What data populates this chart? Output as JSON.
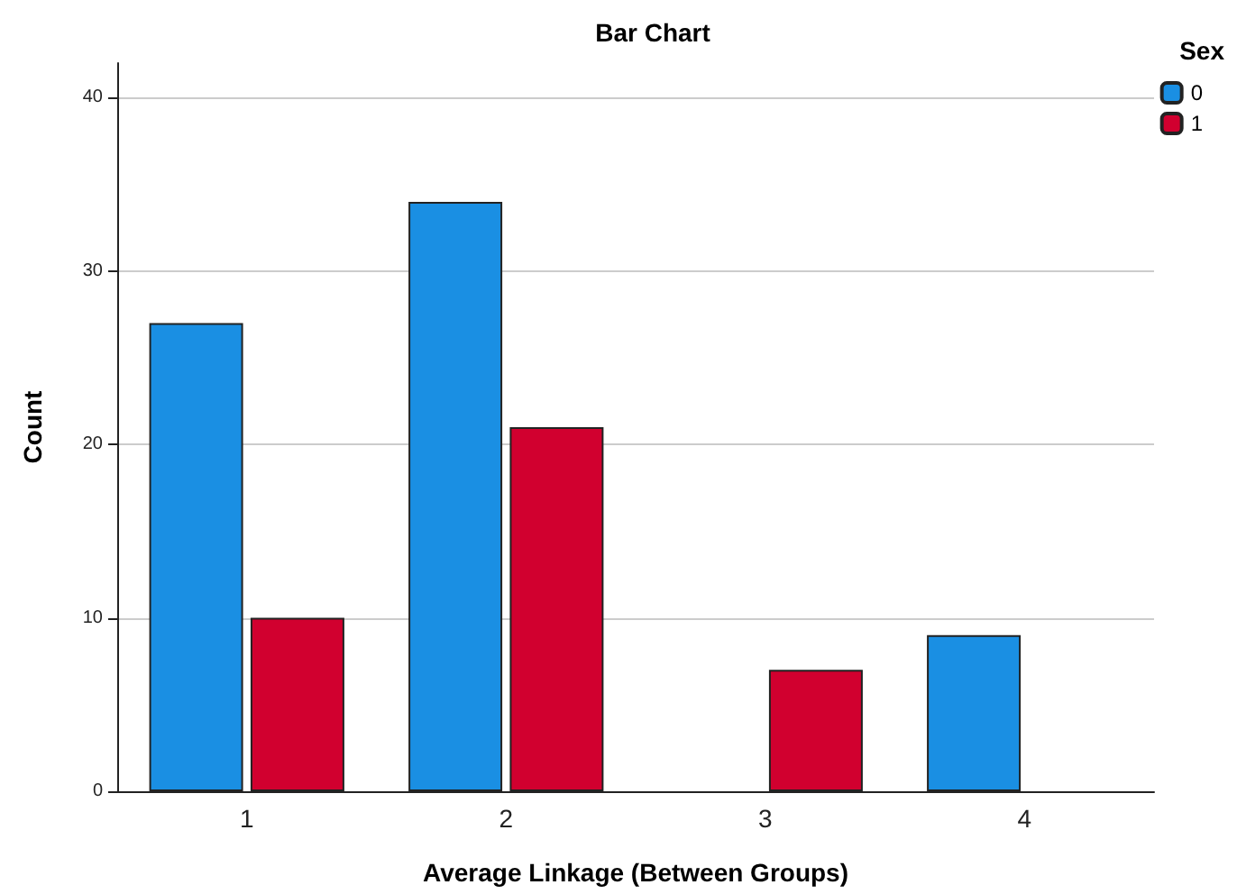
{
  "chart_data": {
    "type": "bar",
    "title": "Bar Chart",
    "xlabel": "Average Linkage (Between Groups)",
    "ylabel": "Count",
    "legend_title": "Sex",
    "categories": [
      "1",
      "2",
      "3",
      "4"
    ],
    "series": [
      {
        "name": "0",
        "color": "#1a8fe3",
        "values": [
          27,
          34,
          null,
          9
        ]
      },
      {
        "name": "1",
        "color": "#d1002f",
        "values": [
          10,
          21,
          7,
          null
        ]
      }
    ],
    "ylim": [
      0,
      42
    ],
    "yticks": [
      0,
      10,
      20,
      30,
      40
    ],
    "grid": "y",
    "legend": "top right"
  }
}
